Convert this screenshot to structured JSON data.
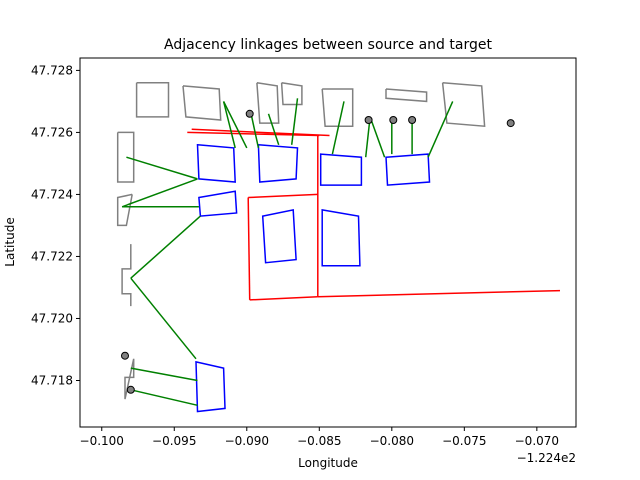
{
  "chart_data": {
    "type": "map",
    "title": "Adjacency linkages between source and target",
    "xlabel": "Longitude",
    "ylabel": "Latitude",
    "x_offset_label": "−1.224e2",
    "xlim": [
      -0.1015,
      -0.0673
    ],
    "ylim": [
      47.7165,
      47.7284
    ],
    "x_tick_labels": [
      "−0.100",
      "−0.095",
      "−0.090",
      "−0.085",
      "−0.080",
      "−0.075",
      "−0.070"
    ],
    "x_tick_values": [
      -0.1,
      -0.095,
      -0.09,
      -0.085,
      -0.08,
      -0.075,
      -0.07
    ],
    "y_tick_labels": [
      "47.718",
      "47.720",
      "47.722",
      "47.724",
      "47.726",
      "47.728"
    ],
    "y_tick_values": [
      47.718,
      47.72,
      47.722,
      47.724,
      47.726,
      47.728
    ],
    "colors": {
      "source": "#808080",
      "target": "#0000ff",
      "road": "#ff0000",
      "link": "#008000",
      "point_fill": "#808080"
    },
    "source_polygons": [
      [
        [
          -0.0976,
          47.7276
        ],
        [
          -0.0954,
          47.7276
        ],
        [
          -0.0954,
          47.7265
        ],
        [
          -0.0976,
          47.7265
        ]
      ],
      [
        [
          -0.0944,
          47.7275
        ],
        [
          -0.0919,
          47.7274
        ],
        [
          -0.0918,
          47.7264
        ],
        [
          -0.0942,
          47.7265
        ]
      ],
      [
        [
          -0.0893,
          47.7276
        ],
        [
          -0.0879,
          47.7275
        ],
        [
          -0.0878,
          47.7263
        ],
        [
          -0.0891,
          47.7263
        ]
      ],
      [
        [
          -0.0876,
          47.7276
        ],
        [
          -0.0862,
          47.7275
        ],
        [
          -0.0862,
          47.7269
        ],
        [
          -0.0875,
          47.7269
        ]
      ],
      [
        [
          -0.0848,
          47.7274
        ],
        [
          -0.0827,
          47.7274
        ],
        [
          -0.0827,
          47.7262
        ],
        [
          -0.0846,
          47.7262
        ]
      ],
      [
        [
          -0.0804,
          47.7274
        ],
        [
          -0.0776,
          47.7273
        ],
        [
          -0.0776,
          47.727
        ],
        [
          -0.0804,
          47.7271
        ]
      ],
      [
        [
          -0.0765,
          47.7276
        ],
        [
          -0.0738,
          47.7275
        ],
        [
          -0.0736,
          47.7262
        ],
        [
          -0.0762,
          47.7263
        ]
      ],
      [
        [
          -0.0989,
          47.726
        ],
        [
          -0.0978,
          47.726
        ],
        [
          -0.0978,
          47.7244
        ],
        [
          -0.0989,
          47.7244
        ]
      ],
      [
        [
          -0.0979,
          47.724
        ],
        [
          -0.0989,
          47.7239
        ],
        [
          -0.0989,
          47.723
        ],
        [
          -0.0983,
          47.723
        ]
      ],
      [
        [
          -0.098,
          47.7224
        ],
        [
          -0.098,
          47.7216
        ],
        [
          -0.0986,
          47.7216
        ],
        [
          -0.0986,
          47.7208
        ],
        [
          -0.098,
          47.7208
        ],
        [
          -0.098,
          47.7204
        ]
      ],
      [
        [
          -0.0978,
          47.7187
        ],
        [
          -0.0978,
          47.7181
        ],
        [
          -0.0984,
          47.7181
        ],
        [
          -0.0984,
          47.7174
        ]
      ]
    ],
    "target_polygons": [
      [
        [
          -0.0934,
          47.7256
        ],
        [
          -0.0909,
          47.7255
        ],
        [
          -0.0908,
          47.7244
        ],
        [
          -0.0933,
          47.7245
        ]
      ],
      [
        [
          -0.0892,
          47.7256
        ],
        [
          -0.0865,
          47.7255
        ],
        [
          -0.0866,
          47.7245
        ],
        [
          -0.0891,
          47.7244
        ]
      ],
      [
        [
          -0.0849,
          47.7253
        ],
        [
          -0.0821,
          47.7252
        ],
        [
          -0.0821,
          47.7243
        ],
        [
          -0.0849,
          47.7243
        ]
      ],
      [
        [
          -0.0804,
          47.7252
        ],
        [
          -0.0775,
          47.7253
        ],
        [
          -0.0774,
          47.7244
        ],
        [
          -0.0803,
          47.7243
        ]
      ],
      [
        [
          -0.0933,
          47.7239
        ],
        [
          -0.0908,
          47.7241
        ],
        [
          -0.0907,
          47.7234
        ],
        [
          -0.0932,
          47.7233
        ]
      ],
      [
        [
          -0.0889,
          47.7233
        ],
        [
          -0.0868,
          47.7235
        ],
        [
          -0.0866,
          47.7219
        ],
        [
          -0.0887,
          47.7218
        ]
      ],
      [
        [
          -0.0848,
          47.7235
        ],
        [
          -0.0823,
          47.7233
        ],
        [
          -0.0822,
          47.7217
        ],
        [
          -0.0848,
          47.7217
        ]
      ],
      [
        [
          -0.0935,
          47.7186
        ],
        [
          -0.0916,
          47.7184
        ],
        [
          -0.0915,
          47.7171
        ],
        [
          -0.0934,
          47.717
        ]
      ]
    ],
    "road_lines": [
      [
        [
          -0.0941,
          47.726
        ],
        [
          -0.085,
          47.7259
        ]
      ],
      [
        [
          -0.0938,
          47.7261
        ],
        [
          -0.0843,
          47.7259
        ]
      ],
      [
        [
          -0.0851,
          47.7259
        ],
        [
          -0.0851,
          47.7207
        ]
      ],
      [
        [
          -0.0899,
          47.7239
        ],
        [
          -0.0851,
          47.724
        ]
      ],
      [
        [
          -0.0899,
          47.7239
        ],
        [
          -0.0898,
          47.7206
        ]
      ],
      [
        [
          -0.0898,
          47.7206
        ],
        [
          -0.0851,
          47.7207
        ]
      ],
      [
        [
          -0.0851,
          47.7207
        ],
        [
          -0.0684,
          47.7209
        ]
      ]
    ],
    "links": [
      [
        [
          -0.0983,
          47.7252
        ],
        [
          -0.0934,
          47.7245
        ]
      ],
      [
        [
          -0.0986,
          47.7236
        ],
        [
          -0.0934,
          47.7245
        ]
      ],
      [
        [
          -0.0986,
          47.7236
        ],
        [
          -0.0933,
          47.7236
        ]
      ],
      [
        [
          -0.0916,
          47.727
        ],
        [
          -0.09,
          47.7255
        ]
      ],
      [
        [
          -0.0916,
          47.727
        ],
        [
          -0.0908,
          47.7255
        ]
      ],
      [
        [
          -0.0897,
          47.7266
        ],
        [
          -0.0892,
          47.7255
        ]
      ],
      [
        [
          -0.0885,
          47.7266
        ],
        [
          -0.0878,
          47.7256
        ]
      ],
      [
        [
          -0.0865,
          47.7271
        ],
        [
          -0.0869,
          47.7256
        ]
      ],
      [
        [
          -0.0833,
          47.727
        ],
        [
          -0.0841,
          47.7253
        ]
      ],
      [
        [
          -0.0815,
          47.7265
        ],
        [
          -0.0805,
          47.7252
        ]
      ],
      [
        [
          -0.0815,
          47.7265
        ],
        [
          -0.0818,
          47.7252
        ]
      ],
      [
        [
          -0.08,
          47.7265
        ],
        [
          -0.08,
          47.7253
        ]
      ],
      [
        [
          -0.0786,
          47.7265
        ],
        [
          -0.0786,
          47.7253
        ]
      ],
      [
        [
          -0.0758,
          47.727
        ],
        [
          -0.0775,
          47.7252
        ]
      ],
      [
        [
          -0.0932,
          47.7233
        ],
        [
          -0.098,
          47.7213
        ]
      ],
      [
        [
          -0.098,
          47.7213
        ],
        [
          -0.0935,
          47.7187
        ]
      ],
      [
        [
          -0.098,
          47.7184
        ],
        [
          -0.0934,
          47.718
        ]
      ],
      [
        [
          -0.098,
          47.7177
        ],
        [
          -0.0934,
          47.7172
        ]
      ]
    ],
    "points": [
      [
        -0.0898,
        47.7266
      ],
      [
        -0.0816,
        47.7264
      ],
      [
        -0.0799,
        47.7264
      ],
      [
        -0.0786,
        47.7264
      ],
      [
        -0.0718,
        47.7263
      ],
      [
        -0.0984,
        47.7188
      ],
      [
        -0.098,
        47.7177
      ]
    ]
  }
}
